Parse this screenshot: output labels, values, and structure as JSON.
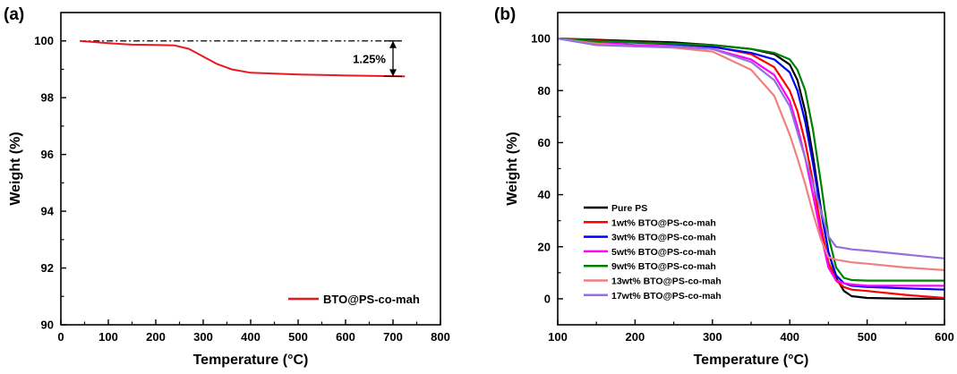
{
  "chart_data": [
    {
      "panel": "(a)",
      "type": "line",
      "xlabel": "Temperature (°C)",
      "ylabel": "Weight (%)",
      "xlim": [
        0,
        800
      ],
      "ylim": [
        90,
        101
      ],
      "xticks": [
        0,
        100,
        200,
        300,
        400,
        500,
        600,
        700,
        800
      ],
      "yticks": [
        90,
        92,
        94,
        96,
        98,
        100
      ],
      "legend_position": "bottom-right",
      "series": [
        {
          "name": "BTO@PS-co-mah",
          "color": "#e8191f",
          "x": [
            40,
            100,
            150,
            200,
            240,
            270,
            300,
            330,
            360,
            400,
            450,
            500,
            550,
            600,
            650,
            700,
            725
          ],
          "y": [
            100.0,
            99.92,
            99.87,
            99.86,
            99.84,
            99.72,
            99.45,
            99.18,
            99.0,
            98.88,
            98.85,
            98.82,
            98.8,
            98.78,
            98.77,
            98.76,
            98.75
          ]
        }
      ],
      "reference_line": {
        "y": 100.0,
        "x_range": [
          40,
          715
        ]
      },
      "annotation": {
        "text": "1.25%",
        "x": 715,
        "y_from": 100.0,
        "y_to": 98.75
      }
    },
    {
      "panel": "(b)",
      "type": "line",
      "xlabel": "Temperature (°C)",
      "ylabel": "Weight (%)",
      "xlim": [
        100,
        600
      ],
      "ylim": [
        -10,
        110
      ],
      "xticks": [
        100,
        200,
        300,
        400,
        500,
        600
      ],
      "yticks": [
        0,
        20,
        40,
        60,
        80,
        100
      ],
      "legend_position": "bottom-left",
      "x": [
        100,
        150,
        200,
        250,
        300,
        350,
        380,
        400,
        410,
        420,
        430,
        440,
        450,
        460,
        470,
        480,
        500,
        550,
        600
      ],
      "series": [
        {
          "name": "Pure PS",
          "color": "#000000",
          "y": [
            100,
            99.5,
            99,
            98.5,
            97.5,
            96,
            94,
            90,
            84,
            72,
            55,
            35,
            18,
            8,
            3,
            1,
            0.3,
            0,
            0
          ]
        },
        {
          "name": "1wt% BTO@PS-co-mah",
          "color": "#ff0000",
          "y": [
            100,
            99.2,
            98.6,
            98,
            97,
            94,
            89,
            80,
            72,
            60,
            45,
            28,
            14,
            7,
            4.5,
            3.5,
            3,
            1.5,
            0.3
          ]
        },
        {
          "name": "3wt% BTO@PS-co-mah",
          "color": "#0000ff",
          "y": [
            100,
            99,
            98.4,
            97.8,
            96.8,
            94.5,
            92,
            87,
            80,
            68,
            52,
            34,
            18,
            9,
            6,
            5,
            4.5,
            4,
            3.5
          ]
        },
        {
          "name": "5wt% BTO@PS-co-mah",
          "color": "#ff00ff",
          "y": [
            100,
            98.5,
            97.5,
            97,
            96,
            92,
            86,
            76,
            66,
            54,
            40,
            25,
            12,
            7,
            6,
            5.5,
            5,
            5,
            5
          ]
        },
        {
          "name": "9wt% BTO@PS-co-mah",
          "color": "#008000",
          "y": [
            100,
            99,
            98.5,
            98,
            97.5,
            96,
            94.5,
            92,
            88,
            80,
            65,
            45,
            24,
            12,
            8,
            7.2,
            7,
            7,
            7
          ]
        },
        {
          "name": "13wt% BTO@PS-co-mah",
          "color": "#f08080",
          "y": [
            100,
            98,
            97,
            96.5,
            95,
            88,
            78,
            63,
            54,
            44,
            33,
            23,
            16,
            15,
            14.5,
            14,
            13.5,
            12,
            11
          ]
        },
        {
          "name": "17wt% BTO@PS-co-mah",
          "color": "#9370db",
          "y": [
            100,
            97.5,
            97,
            96.8,
            96,
            91,
            84,
            74,
            64,
            54,
            44,
            34,
            24,
            20,
            19.5,
            19,
            18.5,
            17,
            15.5
          ]
        }
      ]
    }
  ]
}
